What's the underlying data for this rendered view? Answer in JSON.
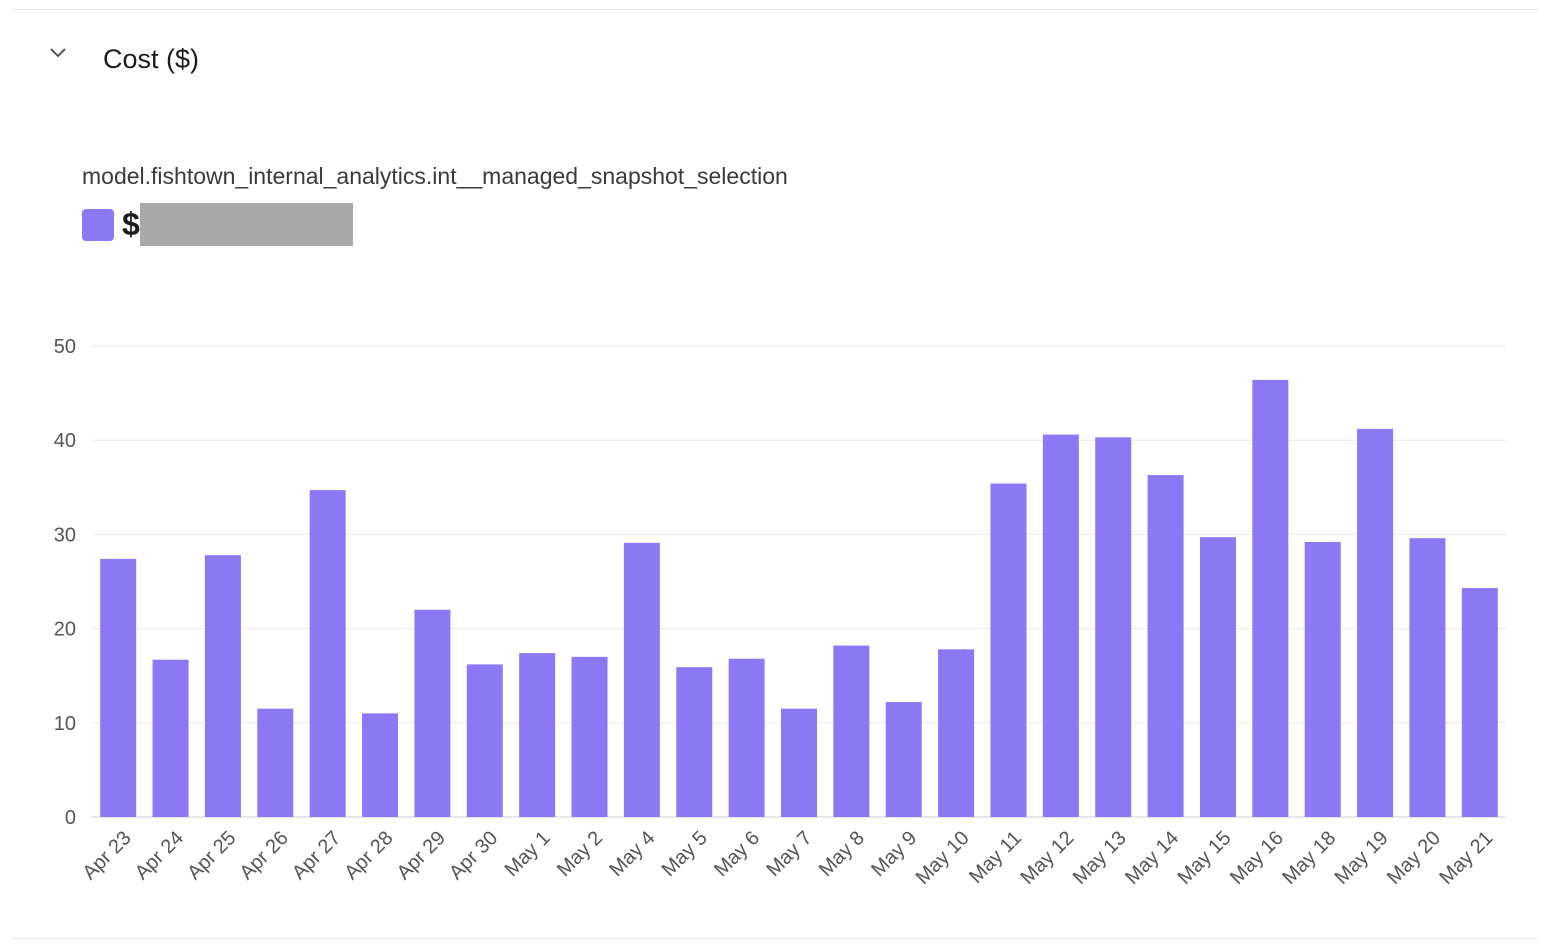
{
  "section": {
    "title": "Cost ($)",
    "collapse_icon": "chevron-down-icon"
  },
  "legend": {
    "model_name": "model.fishtown_internal_analytics.int__managed_snapshot_selection",
    "series_prefix": "$",
    "color": "#8b78f5"
  },
  "chart_data": {
    "type": "bar",
    "categories": [
      "Apr 23",
      "Apr 24",
      "Apr 25",
      "Apr 26",
      "Apr 27",
      "Apr 28",
      "Apr 29",
      "Apr 30",
      "May 1",
      "May 2",
      "May 4",
      "May 5",
      "May 6",
      "May 7",
      "May 8",
      "May 9",
      "May 10",
      "May 11",
      "May 12",
      "May 13",
      "May 14",
      "May 15",
      "May 16",
      "May 18",
      "May 19",
      "May 20",
      "May 21"
    ],
    "values": [
      27.4,
      16.7,
      27.8,
      11.5,
      34.7,
      11.0,
      22.0,
      16.2,
      17.4,
      17.0,
      29.1,
      15.9,
      16.8,
      11.5,
      18.2,
      12.2,
      17.8,
      35.4,
      40.6,
      40.3,
      36.3,
      29.7,
      46.4,
      29.2,
      41.2,
      29.6,
      24.3
    ],
    "ylim": [
      0,
      50
    ],
    "yticks": [
      0,
      10,
      20,
      30,
      40,
      50
    ],
    "grid": true,
    "color": "#8b78f5"
  }
}
